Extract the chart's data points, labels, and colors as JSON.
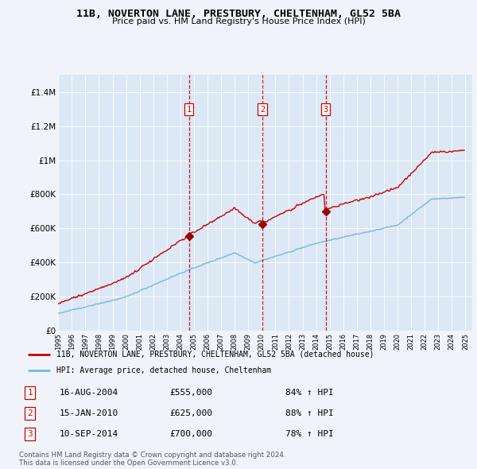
{
  "title": "11B, NOVERTON LANE, PRESTBURY, CHELTENHAM, GL52 5BA",
  "subtitle": "Price paid vs. HM Land Registry's House Price Index (HPI)",
  "background_color": "#f0f4fa",
  "plot_bg_color": "#dce8f5",
  "sale1_date": "16-AUG-2004",
  "sale1_price": 555000,
  "sale1_year": 2004.625,
  "sale1_hpi": "84%",
  "sale2_date": "15-JAN-2010",
  "sale2_price": 625000,
  "sale2_year": 2010.042,
  "sale2_hpi": "88%",
  "sale3_date": "10-SEP-2014",
  "sale3_price": 700000,
  "sale3_year": 2014.708,
  "sale3_hpi": "78%",
  "ylim_max": 1500000,
  "xlim_min": 1995,
  "xlim_max": 2025.5,
  "yticks": [
    0,
    200000,
    400000,
    600000,
    800000,
    1000000,
    1200000,
    1400000
  ],
  "ylabels": [
    "£0",
    "£200K",
    "£400K",
    "£600K",
    "£800K",
    "£1M",
    "£1.2M",
    "£1.4M"
  ],
  "legend_address": "11B, NOVERTON LANE, PRESTBURY, CHELTENHAM, GL52 5BA (detached house)",
  "legend_hpi": "HPI: Average price, detached house, Cheltenham",
  "footer1": "Contains HM Land Registry data © Crown copyright and database right 2024.",
  "footer2": "This data is licensed under the Open Government Licence v3.0.",
  "red_color": "#cc0000",
  "blue_color": "#7ab8d8",
  "marker_color": "#990000"
}
